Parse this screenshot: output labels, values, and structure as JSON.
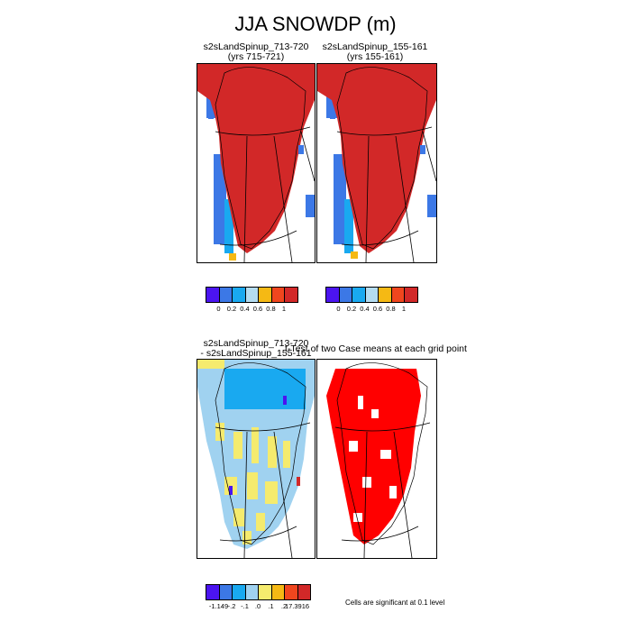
{
  "figure": {
    "title": "JJA SNOWDP (m)",
    "panels": {
      "top_left": {
        "line1": "s2sLandSpinup_713-720",
        "line2": "(yrs 715-721)"
      },
      "top_right": {
        "line1": "s2sLandSpinup_155-161",
        "line2": "(yrs 155-161)"
      },
      "bottom_left": {
        "line1": "s2sLandSpinup_713-720",
        "line2": "- s2sLandSpinup_155-161"
      },
      "bottom_right": {
        "line1": "t-Test of two Case means at each grid point"
      }
    },
    "colorbar_top": {
      "colors": [
        "#4b14f0",
        "#3c78e6",
        "#19a9f0",
        "#b4dcf0",
        "#f5b914",
        "#f0461e",
        "#d22828"
      ],
      "labels": [
        "0",
        "0.2",
        "0.4",
        "0.6",
        "0.8",
        "1"
      ]
    },
    "colorbar_bottom": {
      "colors": [
        "#4b14f0",
        "#3c78e6",
        "#19a9f0",
        "#a0d2f0",
        "#f5eb6e",
        "#f5b914",
        "#f0461e",
        "#d22828"
      ],
      "labels": [
        "-1.149",
        "-.2",
        "-.1",
        ".0",
        ".1",
        ".2",
        "17.3916"
      ]
    },
    "significance_note": "Cells are significant at 0.1 level"
  }
}
